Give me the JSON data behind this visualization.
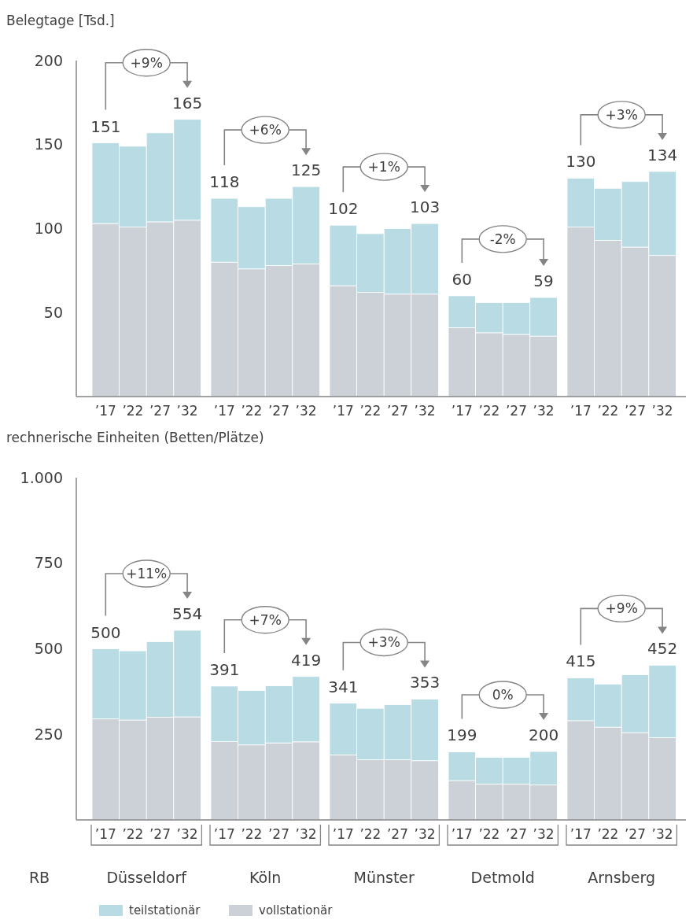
{
  "chart_data": [
    {
      "type": "bar",
      "stacked": true,
      "ylabel": "Belegtage [Tsd.]",
      "categories": [
        "’17",
        "’22",
        "’27",
        "’32",
        "’17",
        "’22",
        "’27",
        "’32",
        "’17",
        "’22",
        "’27",
        "’32",
        "’17",
        "’22",
        "’27",
        "’32",
        "’17",
        "’22",
        "’27",
        "’32"
      ],
      "series": [
        {
          "color": "#ccd1d8",
          "values": [
            103,
            101,
            104,
            105,
            80,
            76,
            78,
            79,
            66,
            62,
            61,
            61,
            41,
            38,
            37,
            36,
            101,
            93,
            89,
            84
          ]
        },
        {
          "color": "#b9dce4",
          "values": [
            48,
            48,
            53,
            60,
            38,
            37,
            40,
            46,
            36,
            35,
            39,
            42,
            19,
            18,
            19,
            23,
            29,
            31,
            39,
            50
          ]
        }
      ],
      "totals": [
        "151",
        null,
        null,
        "165",
        "118",
        null,
        null,
        "125",
        "102",
        null,
        null,
        "103",
        "60",
        null,
        null,
        "59",
        "130",
        null,
        null,
        "134"
      ],
      "annotations": [
        "+9%",
        "+6%",
        "+1%",
        "-2%",
        "+3%"
      ],
      "ylim": [
        0,
        200
      ],
      "yticks": [
        50,
        100,
        150,
        200
      ],
      "grid": false
    },
    {
      "type": "bar",
      "stacked": true,
      "ylabel": "rechnerische Einheiten (Betten/Plätze)",
      "categories": [
        "’17",
        "’22",
        "’27",
        "’32",
        "’17",
        "’22",
        "’27",
        "’32",
        "’17",
        "’22",
        "’27",
        "’32",
        "’17",
        "’22",
        "’27",
        "’32",
        "’17",
        "’22",
        "’27",
        "’32"
      ],
      "series": [
        {
          "name": "vollstationär",
          "color": "#ccd1d8",
          "values": [
            295,
            292,
            300,
            301,
            229,
            219,
            225,
            228,
            190,
            176,
            176,
            173,
            115,
            105,
            105,
            102,
            290,
            271,
            255,
            240
          ]
        },
        {
          "name": "teilstationär",
          "color": "#b9dce4",
          "values": [
            205,
            202,
            221,
            253,
            162,
            159,
            167,
            191,
            151,
            150,
            161,
            180,
            84,
            78,
            78,
            98,
            125,
            126,
            169,
            212
          ]
        }
      ],
      "totals": [
        "500",
        null,
        null,
        "554",
        "391",
        null,
        null,
        "419",
        "341",
        null,
        null,
        "353",
        "199",
        null,
        null,
        "200",
        "415",
        null,
        null,
        "452"
      ],
      "annotations": [
        "+11%",
        "+7%",
        "+3%",
        "0%",
        "+9%",
        "RB",
        "Düsseldorf",
        "Köln",
        "Münster",
        "Detmold",
        "Arnsberg"
      ],
      "ylim": [
        0,
        1000
      ],
      "yticks": [
        250,
        500,
        750,
        {
          "value": 1000,
          "label": "1.000"
        }
      ],
      "grid": false,
      "legend": "bottom"
    }
  ]
}
